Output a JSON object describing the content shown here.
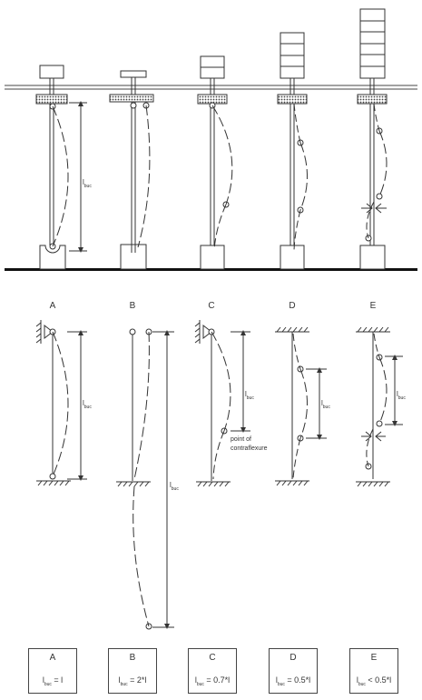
{
  "column_labels": [
    "A",
    "B",
    "C",
    "D",
    "E"
  ],
  "length_symbol": {
    "base": "l",
    "subscript": "buc"
  },
  "annotation": {
    "line1": "point of",
    "line2": "contraflexure"
  },
  "cases": [
    {
      "letter": "A",
      "formula_suffix": " = l"
    },
    {
      "letter": "B",
      "formula_suffix": " = 2*l"
    },
    {
      "letter": "C",
      "formula_suffix": " = 0.7*l"
    },
    {
      "letter": "D",
      "formula_suffix": " = 0.5*l"
    },
    {
      "letter": "E",
      "formula_suffix": " < 0.5*l"
    }
  ],
  "colors": {
    "line": "#333333",
    "ground": "#111111",
    "stipple": "#555555"
  }
}
